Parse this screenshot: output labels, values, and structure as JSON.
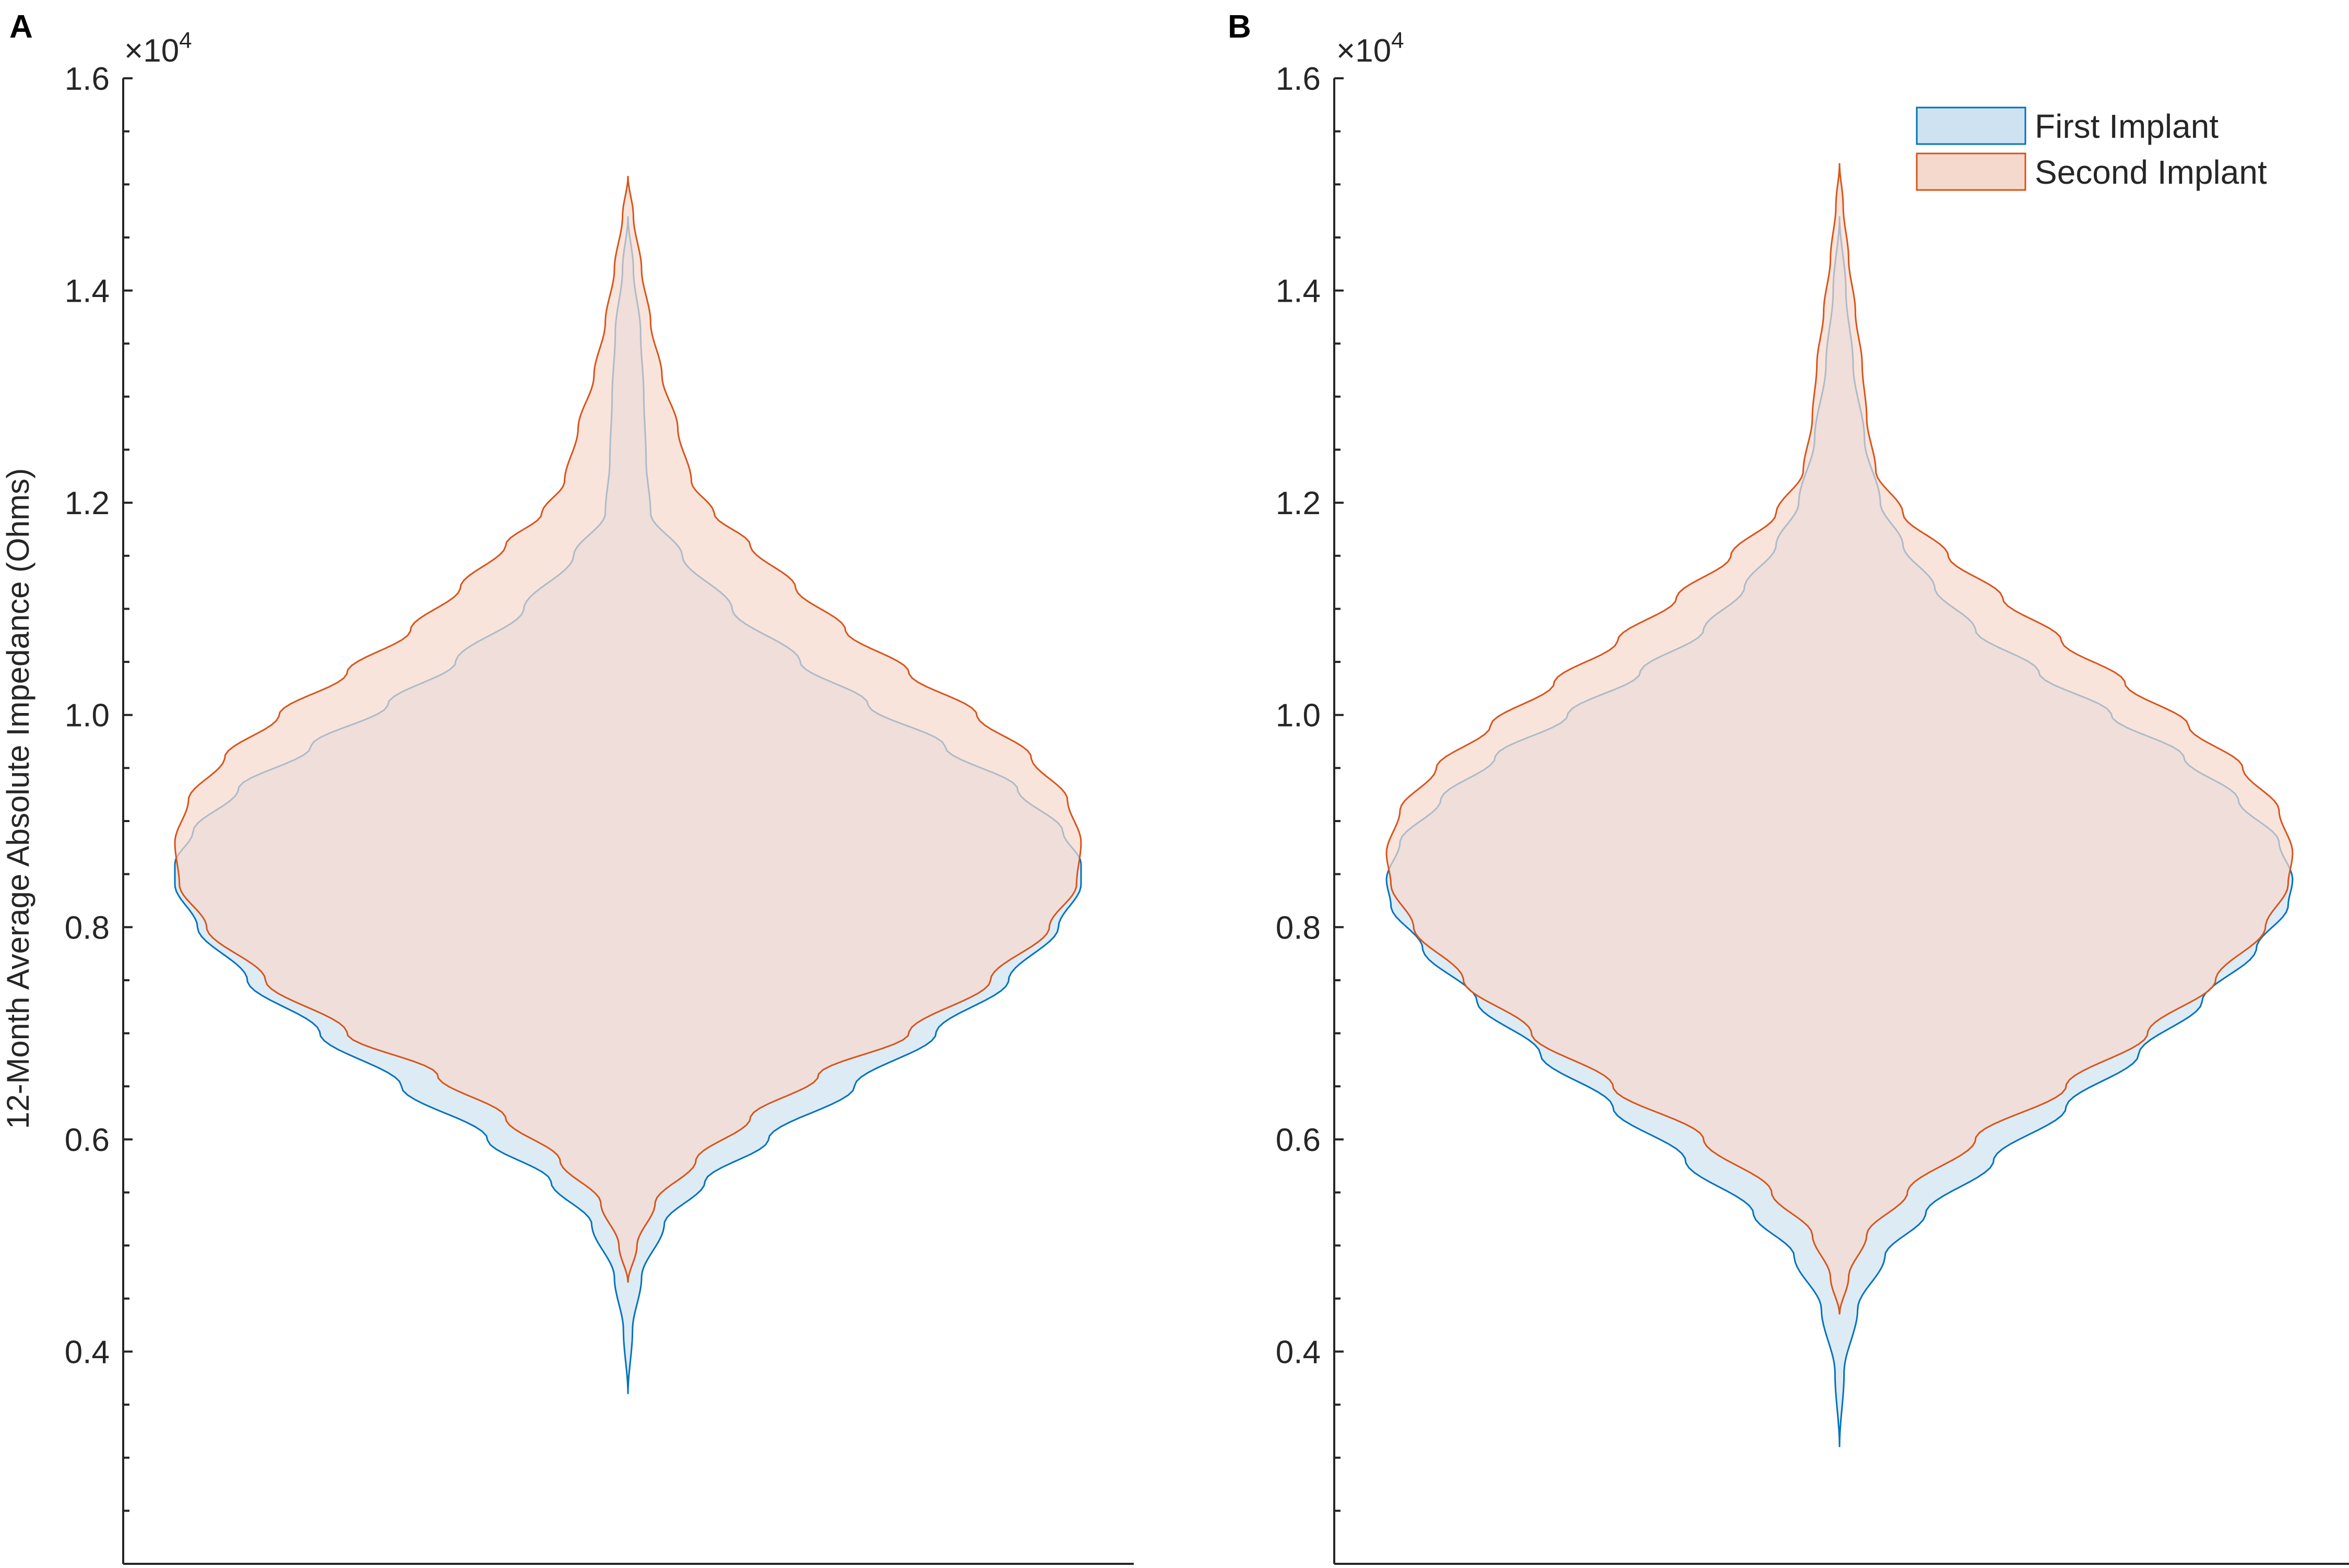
{
  "chart_data": [
    {
      "type": "violin",
      "panel_label": "A",
      "ylabel": "12-Month Average Absolute Impedance (Ohms)",
      "y_exponent_label": "×10",
      "y_exponent_power": "4",
      "ylim": [
        2000,
        16000
      ],
      "yticks": [
        4000,
        6000,
        8000,
        10000,
        12000,
        14000,
        16000
      ],
      "ytick_labels": [
        "0.4",
        "0.6",
        "0.8",
        "1.0",
        "1.2",
        "1.4",
        "1.6"
      ],
      "minor_tick_step": 500,
      "series": [
        {
          "name": "First Implant",
          "color": "#0072BD",
          "fill": "#CFE2F1",
          "min": 3600,
          "max": 14700,
          "profile": [
            [
              3600,
              0
            ],
            [
              4200,
              0.01
            ],
            [
              4700,
              0.03
            ],
            [
              5200,
              0.08
            ],
            [
              5600,
              0.17
            ],
            [
              6000,
              0.31
            ],
            [
              6500,
              0.5
            ],
            [
              7000,
              0.68
            ],
            [
              7500,
              0.84
            ],
            [
              8000,
              0.95
            ],
            [
              8400,
              1.0
            ],
            [
              8600,
              1.0
            ],
            [
              8900,
              0.96
            ],
            [
              9300,
              0.86
            ],
            [
              9700,
              0.7
            ],
            [
              10100,
              0.53
            ],
            [
              10500,
              0.38
            ],
            [
              11000,
              0.23
            ],
            [
              11500,
              0.12
            ],
            [
              11900,
              0.05
            ],
            [
              12400,
              0.04
            ],
            [
              13000,
              0.035
            ],
            [
              13600,
              0.028
            ],
            [
              14200,
              0.012
            ],
            [
              14700,
              0
            ]
          ]
        },
        {
          "name": "Second Implant",
          "color": "#D95319",
          "fill": "#F6D9CD",
          "min": 4650,
          "max": 15080,
          "profile": [
            [
              4650,
              0
            ],
            [
              5000,
              0.02
            ],
            [
              5400,
              0.06
            ],
            [
              5800,
              0.15
            ],
            [
              6200,
              0.27
            ],
            [
              6600,
              0.42
            ],
            [
              7000,
              0.62
            ],
            [
              7500,
              0.8
            ],
            [
              8000,
              0.93
            ],
            [
              8400,
              0.99
            ],
            [
              8800,
              1.0
            ],
            [
              9200,
              0.97
            ],
            [
              9600,
              0.89
            ],
            [
              10000,
              0.77
            ],
            [
              10400,
              0.62
            ],
            [
              10800,
              0.48
            ],
            [
              11200,
              0.37
            ],
            [
              11600,
              0.27
            ],
            [
              11900,
              0.19
            ],
            [
              12200,
              0.14
            ],
            [
              12700,
              0.11
            ],
            [
              13200,
              0.075
            ],
            [
              13700,
              0.05
            ],
            [
              14200,
              0.03
            ],
            [
              14700,
              0.012
            ],
            [
              15080,
              0
            ]
          ]
        }
      ]
    },
    {
      "type": "violin",
      "panel_label": "B",
      "y_exponent_label": "×10",
      "y_exponent_power": "4",
      "ylim": [
        2000,
        16000
      ],
      "yticks": [
        4000,
        6000,
        8000,
        10000,
        12000,
        14000,
        16000
      ],
      "ytick_labels": [
        "0.4",
        "0.6",
        "0.8",
        "1.0",
        "1.2",
        "1.4",
        "1.6"
      ],
      "minor_tick_step": 500,
      "legend": {
        "location": "top-right",
        "entries": [
          "First Implant",
          "Second Implant"
        ]
      },
      "series": [
        {
          "name": "First Implant",
          "color": "#0072BD",
          "fill": "#CFE2F1",
          "min": 3100,
          "max": 14700,
          "profile": [
            [
              3100,
              0
            ],
            [
              3800,
              0.01
            ],
            [
              4400,
              0.04
            ],
            [
              4900,
              0.1
            ],
            [
              5300,
              0.19
            ],
            [
              5800,
              0.34
            ],
            [
              6300,
              0.5
            ],
            [
              6800,
              0.66
            ],
            [
              7300,
              0.8
            ],
            [
              7800,
              0.92
            ],
            [
              8200,
              0.99
            ],
            [
              8450,
              1.0
            ],
            [
              8800,
              0.97
            ],
            [
              9200,
              0.88
            ],
            [
              9600,
              0.76
            ],
            [
              10000,
              0.6
            ],
            [
              10400,
              0.44
            ],
            [
              10800,
              0.3
            ],
            [
              11200,
              0.21
            ],
            [
              11600,
              0.14
            ],
            [
              12000,
              0.09
            ],
            [
              12600,
              0.055
            ],
            [
              13300,
              0.03
            ],
            [
              14000,
              0.014
            ],
            [
              14700,
              0
            ]
          ]
        },
        {
          "name": "Second Implant",
          "color": "#D95319",
          "fill": "#F6D9CD",
          "min": 4350,
          "max": 15200,
          "profile": [
            [
              4350,
              0
            ],
            [
              4700,
              0.02
            ],
            [
              5100,
              0.06
            ],
            [
              5500,
              0.15
            ],
            [
              6000,
              0.3
            ],
            [
              6500,
              0.5
            ],
            [
              7000,
              0.68
            ],
            [
              7500,
              0.83
            ],
            [
              8000,
              0.94
            ],
            [
              8400,
              0.99
            ],
            [
              8700,
              1.0
            ],
            [
              9100,
              0.97
            ],
            [
              9500,
              0.89
            ],
            [
              9900,
              0.77
            ],
            [
              10300,
              0.63
            ],
            [
              10700,
              0.49
            ],
            [
              11100,
              0.36
            ],
            [
              11500,
              0.24
            ],
            [
              11900,
              0.14
            ],
            [
              12300,
              0.08
            ],
            [
              12800,
              0.06
            ],
            [
              13300,
              0.05
            ],
            [
              13800,
              0.035
            ],
            [
              14300,
              0.02
            ],
            [
              14800,
              0.008
            ],
            [
              15200,
              0
            ]
          ]
        }
      ]
    }
  ]
}
